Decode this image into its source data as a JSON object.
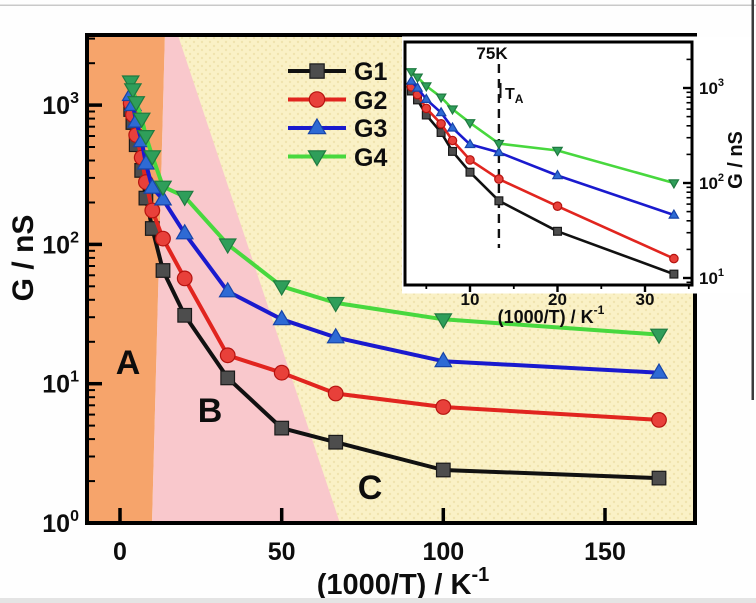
{
  "window": {
    "background": "#ffffff",
    "top_edge_color": "#c9c9c9",
    "right_edge_color": "#3c3c3c",
    "bottom_edge_color": "#e4e4e4"
  },
  "chart_data": [
    {
      "id": "main",
      "type": "line",
      "log_y": true,
      "xlabel": {
        "text": "(1000/T) / K",
        "sup": "-1"
      },
      "ylabel": "G / nS",
      "x_ticks": [
        0,
        50,
        100,
        150
      ],
      "y_tick_exponents": [
        0,
        1,
        2,
        3
      ],
      "xlim": [
        -10.2,
        177.8
      ],
      "ylim": [
        1,
        3160
      ],
      "grid": false,
      "legend_position": "upper-center",
      "x": [
        3.3,
        4,
        5,
        6.7,
        8,
        10,
        13.3,
        20,
        33.3,
        50,
        66.7,
        100,
        166.7
      ],
      "series": [
        {
          "name": "G1",
          "marker": "square",
          "line_color": "#111111",
          "marker_color": "#4d4d4d",
          "marker_edge": "#1a1a1a",
          "values": [
            930,
            750,
            520,
            340,
            215,
            130,
            65,
            31,
            11,
            4.8,
            3.8,
            2.4,
            2.1
          ]
        },
        {
          "name": "G2",
          "marker": "circle",
          "line_color": "#e1251f",
          "marker_color": "#e8403a",
          "marker_edge": "#b5130f",
          "values": [
            1030,
            850,
            610,
            420,
            280,
            175,
            110,
            57,
            16,
            12,
            8.5,
            6.8,
            5.5
          ]
        },
        {
          "name": "G3",
          "marker": "triangle-up",
          "line_color": "#1a1ace",
          "marker_color": "#2e6ad4",
          "marker_edge": "#1644a8",
          "values": [
            1180,
            1000,
            760,
            550,
            380,
            255,
            210,
            120,
            46,
            29,
            21.5,
            14.5,
            12
          ]
        },
        {
          "name": "G4",
          "marker": "triangle-down",
          "line_color": "#48d83e",
          "marker_color": "#2f9e5a",
          "marker_edge": "#1f7a40",
          "values": [
            1480,
            1300,
            1050,
            800,
            600,
            430,
            260,
            220,
            100,
            50,
            38,
            29,
            22.5
          ]
        }
      ],
      "regions": [
        {
          "label": "A",
          "color": "#f6a46b",
          "x_top_right": 13.9,
          "x_bottom_right": 9.9
        },
        {
          "label": "B",
          "color": "#f9c8cc",
          "x_top_right": 17.9,
          "x_bottom_right": 68
        },
        {
          "label": "C",
          "color": "#faf1c6",
          "dot_color": "#e7d79b"
        }
      ]
    },
    {
      "id": "inset",
      "type": "line",
      "log_y": true,
      "xlabel": {
        "text": "(1000/T) / K",
        "sup": "-1"
      },
      "ylabel": "G / nS",
      "ylabel_side": "right",
      "x_ticks": [
        10,
        20,
        30
      ],
      "x_minor_ticks": [
        5,
        15,
        25,
        35
      ],
      "y_tick_exponents": [
        1,
        2,
        3
      ],
      "xlim": [
        2.6,
        35.4
      ],
      "ylim": [
        8.4,
        3000
      ],
      "x": [
        3.3,
        4,
        5,
        6.7,
        8,
        10,
        13.3,
        20,
        33.3
      ],
      "series": [
        {
          "name": "G1",
          "marker": "square",
          "line_color": "#111111",
          "marker_color": "#4d4d4d",
          "marker_edge": "#1a1a1a",
          "values": [
            930,
            750,
            520,
            340,
            215,
            130,
            65,
            31,
            11
          ]
        },
        {
          "name": "G2",
          "marker": "circle",
          "line_color": "#e1251f",
          "marker_color": "#e8403a",
          "marker_edge": "#b5130f",
          "values": [
            1030,
            850,
            610,
            420,
            280,
            175,
            110,
            57,
            16
          ]
        },
        {
          "name": "G3",
          "marker": "triangle-up",
          "line_color": "#1a1ace",
          "marker_color": "#2e6ad4",
          "marker_edge": "#1644a8",
          "values": [
            1180,
            1000,
            760,
            550,
            380,
            255,
            210,
            120,
            46
          ]
        },
        {
          "name": "G4",
          "marker": "triangle-down",
          "line_color": "#48d83e",
          "marker_color": "#2f9e5a",
          "marker_edge": "#1f7a40",
          "values": [
            1480,
            1300,
            1050,
            800,
            600,
            430,
            260,
            220,
            100
          ]
        }
      ],
      "annotations": {
        "vline_x": 13.3,
        "vline_label_top": "75K",
        "vline_label": {
          "text": "T",
          "sub": "A"
        }
      }
    }
  ]
}
